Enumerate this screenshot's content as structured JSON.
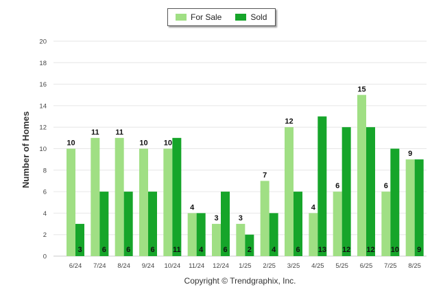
{
  "chart_data": {
    "type": "bar",
    "title": "",
    "xlabel": "",
    "ylabel": "Number of Homes",
    "ylim": [
      0,
      20
    ],
    "yticks": [
      0,
      2,
      4,
      6,
      8,
      10,
      12,
      14,
      16,
      18,
      20
    ],
    "categories": [
      "6/24",
      "7/24",
      "8/24",
      "9/24",
      "10/24",
      "11/24",
      "12/24",
      "1/25",
      "2/25",
      "3/25",
      "4/25",
      "5/25",
      "6/25",
      "7/25",
      "8/25"
    ],
    "series": [
      {
        "name": "For Sale",
        "color": "#a0df84",
        "values": [
          10,
          11,
          11,
          10,
          10,
          4,
          3,
          3,
          7,
          12,
          4,
          6,
          15,
          6,
          9
        ]
      },
      {
        "name": "Sold",
        "color": "#16a52a",
        "values": [
          3,
          6,
          6,
          6,
          11,
          4,
          6,
          2,
          4,
          6,
          13,
          12,
          12,
          10,
          9
        ]
      }
    ],
    "legend_position": "top-center",
    "grid": true
  },
  "footer": {
    "copyright": "Copyright © Trendgraphix, Inc."
  }
}
